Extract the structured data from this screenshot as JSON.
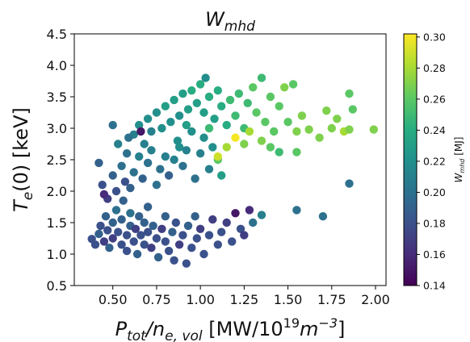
{
  "chart_data": {
    "type": "scatter",
    "title": "W_mhd",
    "title_main": "W",
    "title_sub": "mhd",
    "xlabel": {
      "main": "P",
      "sub": "tot",
      "slash": "/",
      "main2": "n",
      "sub2": "e, vol",
      "units_prefix": " [MW/10",
      "exp": "19",
      "units_mid": "m",
      "exp2": "−3",
      "units_suffix": "]"
    },
    "ylabel": {
      "main": "T",
      "sub": "e",
      "rest": "(0) [keV]"
    },
    "xlim": [
      0.28,
      2.06
    ],
    "ylim": [
      0.5,
      4.5
    ],
    "xticks": [
      "0.50",
      "0.75",
      "1.00",
      "1.25",
      "1.50",
      "1.75",
      "2.00"
    ],
    "xtick_values": [
      0.5,
      0.75,
      1.0,
      1.25,
      1.5,
      1.75,
      2.0
    ],
    "yticks": [
      "0.5",
      "1.0",
      "1.5",
      "2.0",
      "2.5",
      "3.0",
      "3.5",
      "4.0",
      "4.5"
    ],
    "ytick_values": [
      0.5,
      1.0,
      1.5,
      2.0,
      2.5,
      3.0,
      3.5,
      4.0,
      4.5
    ],
    "grid": false,
    "colorbar": {
      "label_main": "W",
      "label_sub": "mhd",
      "label_units": " [MJ]",
      "min": 0.14,
      "max": 0.302,
      "ticks": [
        "0.14",
        "0.16",
        "0.18",
        "0.20",
        "0.22",
        "0.24",
        "0.26",
        "0.28",
        "0.30"
      ],
      "tick_values": [
        0.14,
        0.16,
        0.18,
        0.2,
        0.22,
        0.24,
        0.26,
        0.28,
        0.3
      ],
      "colormap": "viridis"
    },
    "point_count_note_hidden": null,
    "points": [
      {
        "x": 0.38,
        "y": 1.24,
        "w": 0.18
      },
      {
        "x": 0.4,
        "y": 1.15,
        "w": 0.18
      },
      {
        "x": 0.42,
        "y": 1.32,
        "w": 0.19
      },
      {
        "x": 0.43,
        "y": 1.45,
        "w": 0.18
      },
      {
        "x": 0.45,
        "y": 1.2,
        "w": 0.17
      },
      {
        "x": 0.46,
        "y": 1.6,
        "w": 0.19
      },
      {
        "x": 0.47,
        "y": 1.38,
        "w": 0.18
      },
      {
        "x": 0.48,
        "y": 1.1,
        "w": 0.19
      },
      {
        "x": 0.5,
        "y": 1.5,
        "w": 0.19
      },
      {
        "x": 0.5,
        "y": 1.25,
        "w": 0.17
      },
      {
        "x": 0.52,
        "y": 1.7,
        "w": 0.2
      },
      {
        "x": 0.53,
        "y": 1.35,
        "w": 0.18
      },
      {
        "x": 0.55,
        "y": 1.15,
        "w": 0.18
      },
      {
        "x": 0.55,
        "y": 1.55,
        "w": 0.19
      },
      {
        "x": 0.56,
        "y": 1.85,
        "w": 0.19
      },
      {
        "x": 0.58,
        "y": 1.3,
        "w": 0.18
      },
      {
        "x": 0.58,
        "y": 1.05,
        "w": 0.18
      },
      {
        "x": 0.6,
        "y": 1.45,
        "w": 0.19
      },
      {
        "x": 0.6,
        "y": 1.65,
        "w": 0.2
      },
      {
        "x": 0.62,
        "y": 1.2,
        "w": 0.18
      },
      {
        "x": 0.63,
        "y": 1.4,
        "w": 0.17
      },
      {
        "x": 0.64,
        "y": 1.0,
        "w": 0.19
      },
      {
        "x": 0.65,
        "y": 1.6,
        "w": 0.19
      },
      {
        "x": 0.66,
        "y": 1.3,
        "w": 0.18
      },
      {
        "x": 0.68,
        "y": 1.15,
        "w": 0.18
      },
      {
        "x": 0.68,
        "y": 1.5,
        "w": 0.19
      },
      {
        "x": 0.7,
        "y": 1.35,
        "w": 0.18
      },
      {
        "x": 0.7,
        "y": 1.75,
        "w": 0.19
      },
      {
        "x": 0.72,
        "y": 1.1,
        "w": 0.17
      },
      {
        "x": 0.73,
        "y": 1.45,
        "w": 0.19
      },
      {
        "x": 0.75,
        "y": 1.25,
        "w": 0.18
      },
      {
        "x": 0.76,
        "y": 0.95,
        "w": 0.19
      },
      {
        "x": 0.78,
        "y": 1.4,
        "w": 0.17
      },
      {
        "x": 0.8,
        "y": 1.2,
        "w": 0.18
      },
      {
        "x": 0.8,
        "y": 1.6,
        "w": 0.19
      },
      {
        "x": 0.82,
        "y": 1.05,
        "w": 0.18
      },
      {
        "x": 0.84,
        "y": 1.35,
        "w": 0.19
      },
      {
        "x": 0.85,
        "y": 0.9,
        "w": 0.18
      },
      {
        "x": 0.86,
        "y": 1.5,
        "w": 0.18
      },
      {
        "x": 0.88,
        "y": 1.15,
        "w": 0.17
      },
      {
        "x": 0.9,
        "y": 1.3,
        "w": 0.18
      },
      {
        "x": 0.92,
        "y": 0.85,
        "w": 0.18
      },
      {
        "x": 0.93,
        "y": 1.45,
        "w": 0.19
      },
      {
        "x": 0.95,
        "y": 1.1,
        "w": 0.18
      },
      {
        "x": 0.97,
        "y": 1.6,
        "w": 0.19
      },
      {
        "x": 0.98,
        "y": 1.25,
        "w": 0.18
      },
      {
        "x": 1.0,
        "y": 1.4,
        "w": 0.17
      },
      {
        "x": 1.02,
        "y": 1.0,
        "w": 0.18
      },
      {
        "x": 1.05,
        "y": 1.3,
        "w": 0.18
      },
      {
        "x": 1.07,
        "y": 1.55,
        "w": 0.17
      },
      {
        "x": 1.1,
        "y": 1.15,
        "w": 0.18
      },
      {
        "x": 1.12,
        "y": 1.35,
        "w": 0.18
      },
      {
        "x": 1.15,
        "y": 1.5,
        "w": 0.17
      },
      {
        "x": 1.18,
        "y": 1.2,
        "w": 0.18
      },
      {
        "x": 1.2,
        "y": 1.65,
        "w": 0.15
      },
      {
        "x": 1.23,
        "y": 1.4,
        "w": 0.18
      },
      {
        "x": 1.25,
        "y": 1.3,
        "w": 0.17
      },
      {
        "x": 1.28,
        "y": 1.7,
        "w": 0.16
      },
      {
        "x": 1.3,
        "y": 1.5,
        "w": 0.2
      },
      {
        "x": 1.35,
        "y": 1.62,
        "w": 0.21
      },
      {
        "x": 1.55,
        "y": 1.7,
        "w": 0.2
      },
      {
        "x": 1.7,
        "y": 1.6,
        "w": 0.2
      },
      {
        "x": 1.85,
        "y": 2.12,
        "w": 0.2
      },
      {
        "x": 0.47,
        "y": 1.88,
        "w": 0.17
      },
      {
        "x": 0.45,
        "y": 1.95,
        "w": 0.16
      },
      {
        "x": 0.52,
        "y": 2.0,
        "w": 0.18
      },
      {
        "x": 0.5,
        "y": 2.25,
        "w": 0.19
      },
      {
        "x": 0.55,
        "y": 2.4,
        "w": 0.2
      },
      {
        "x": 0.57,
        "y": 2.15,
        "w": 0.18
      },
      {
        "x": 0.6,
        "y": 2.05,
        "w": 0.19
      },
      {
        "x": 0.62,
        "y": 2.3,
        "w": 0.2
      },
      {
        "x": 0.65,
        "y": 2.55,
        "w": 0.21
      },
      {
        "x": 0.67,
        "y": 2.2,
        "w": 0.19
      },
      {
        "x": 0.7,
        "y": 2.45,
        "w": 0.2
      },
      {
        "x": 0.72,
        "y": 2.65,
        "w": 0.21
      },
      {
        "x": 0.75,
        "y": 2.1,
        "w": 0.2
      },
      {
        "x": 0.77,
        "y": 2.35,
        "w": 0.2
      },
      {
        "x": 0.8,
        "y": 2.55,
        "w": 0.21
      },
      {
        "x": 0.82,
        "y": 2.25,
        "w": 0.19
      },
      {
        "x": 0.85,
        "y": 2.5,
        "w": 0.21
      },
      {
        "x": 0.87,
        "y": 2.8,
        "w": 0.22
      },
      {
        "x": 0.9,
        "y": 2.4,
        "w": 0.2
      },
      {
        "x": 0.92,
        "y": 2.65,
        "w": 0.21
      },
      {
        "x": 0.95,
        "y": 2.95,
        "w": 0.22
      },
      {
        "x": 0.97,
        "y": 2.2,
        "w": 0.2
      },
      {
        "x": 1.0,
        "y": 2.6,
        "w": 0.21
      },
      {
        "x": 1.02,
        "y": 2.85,
        "w": 0.22
      },
      {
        "x": 1.05,
        "y": 2.35,
        "w": 0.21
      },
      {
        "x": 1.07,
        "y": 2.7,
        "w": 0.22
      },
      {
        "x": 1.1,
        "y": 2.5,
        "w": 0.26
      },
      {
        "x": 1.12,
        "y": 2.25,
        "w": 0.23
      },
      {
        "x": 0.62,
        "y": 2.9,
        "w": 0.21
      },
      {
        "x": 0.65,
        "y": 3.05,
        "w": 0.22
      },
      {
        "x": 0.68,
        "y": 2.75,
        "w": 0.21
      },
      {
        "x": 0.7,
        "y": 3.15,
        "w": 0.22
      },
      {
        "x": 0.72,
        "y": 2.95,
        "w": 0.21
      },
      {
        "x": 0.75,
        "y": 3.25,
        "w": 0.22
      },
      {
        "x": 0.78,
        "y": 3.0,
        "w": 0.22
      },
      {
        "x": 0.8,
        "y": 3.35,
        "w": 0.23
      },
      {
        "x": 0.83,
        "y": 3.1,
        "w": 0.22
      },
      {
        "x": 0.85,
        "y": 3.45,
        "w": 0.23
      },
      {
        "x": 0.88,
        "y": 3.2,
        "w": 0.22
      },
      {
        "x": 0.9,
        "y": 3.55,
        "w": 0.23
      },
      {
        "x": 0.93,
        "y": 3.3,
        "w": 0.23
      },
      {
        "x": 0.95,
        "y": 3.6,
        "w": 0.24
      },
      {
        "x": 0.98,
        "y": 3.4,
        "w": 0.23
      },
      {
        "x": 1.0,
        "y": 3.7,
        "w": 0.24
      },
      {
        "x": 1.02,
        "y": 3.25,
        "w": 0.23
      },
      {
        "x": 1.03,
        "y": 3.8,
        "w": 0.22
      },
      {
        "x": 1.05,
        "y": 3.5,
        "w": 0.24
      },
      {
        "x": 1.08,
        "y": 3.15,
        "w": 0.23
      },
      {
        "x": 1.1,
        "y": 3.6,
        "w": 0.24
      },
      {
        "x": 1.12,
        "y": 3.35,
        "w": 0.24
      },
      {
        "x": 1.15,
        "y": 3.05,
        "w": 0.24
      },
      {
        "x": 1.17,
        "y": 3.45,
        "w": 0.25
      },
      {
        "x": 1.2,
        "y": 3.2,
        "w": 0.25
      },
      {
        "x": 1.22,
        "y": 3.55,
        "w": 0.25
      },
      {
        "x": 1.25,
        "y": 3.0,
        "w": 0.25
      },
      {
        "x": 1.27,
        "y": 3.4,
        "w": 0.25
      },
      {
        "x": 1.3,
        "y": 3.65,
        "w": 0.26
      },
      {
        "x": 1.32,
        "y": 3.25,
        "w": 0.26
      },
      {
        "x": 1.35,
        "y": 3.8,
        "w": 0.25
      },
      {
        "x": 1.37,
        "y": 3.1,
        "w": 0.26
      },
      {
        "x": 1.4,
        "y": 3.5,
        "w": 0.26
      },
      {
        "x": 1.42,
        "y": 2.95,
        "w": 0.26
      },
      {
        "x": 1.45,
        "y": 3.35,
        "w": 0.26
      },
      {
        "x": 1.48,
        "y": 3.65,
        "w": 0.27
      },
      {
        "x": 1.5,
        "y": 3.1,
        "w": 0.26
      },
      {
        "x": 1.53,
        "y": 3.7,
        "w": 0.26
      },
      {
        "x": 1.55,
        "y": 2.95,
        "w": 0.27
      },
      {
        "x": 1.58,
        "y": 3.2,
        "w": 0.27
      },
      {
        "x": 1.62,
        "y": 2.98,
        "w": 0.27
      },
      {
        "x": 1.68,
        "y": 2.85,
        "w": 0.27
      },
      {
        "x": 1.72,
        "y": 3.28,
        "w": 0.27
      },
      {
        "x": 1.75,
        "y": 3.0,
        "w": 0.27
      },
      {
        "x": 1.78,
        "y": 3.15,
        "w": 0.27
      },
      {
        "x": 1.82,
        "y": 2.95,
        "w": 0.28
      },
      {
        "x": 1.85,
        "y": 2.98,
        "w": 0.27
      },
      {
        "x": 1.87,
        "y": 3.3,
        "w": 0.26
      },
      {
        "x": 1.85,
        "y": 3.55,
        "w": 0.26
      },
      {
        "x": 1.99,
        "y": 2.98,
        "w": 0.27
      },
      {
        "x": 1.4,
        "y": 2.7,
        "w": 0.26
      },
      {
        "x": 1.45,
        "y": 2.62,
        "w": 0.25
      },
      {
        "x": 1.55,
        "y": 2.62,
        "w": 0.26
      },
      {
        "x": 1.35,
        "y": 2.8,
        "w": 0.27
      },
      {
        "x": 1.2,
        "y": 2.85,
        "w": 0.3
      },
      {
        "x": 1.15,
        "y": 2.7,
        "w": 0.28
      },
      {
        "x": 1.25,
        "y": 2.75,
        "w": 0.27
      },
      {
        "x": 1.1,
        "y": 2.55,
        "w": 0.29
      },
      {
        "x": 1.28,
        "y": 2.95,
        "w": 0.28
      },
      {
        "x": 1.05,
        "y": 3.0,
        "w": 0.25
      },
      {
        "x": 0.92,
        "y": 3.05,
        "w": 0.23
      },
      {
        "x": 0.88,
        "y": 2.7,
        "w": 0.22
      },
      {
        "x": 0.58,
        "y": 2.6,
        "w": 0.2
      },
      {
        "x": 0.53,
        "y": 2.75,
        "w": 0.21
      },
      {
        "x": 0.5,
        "y": 3.05,
        "w": 0.2
      },
      {
        "x": 0.42,
        "y": 2.45,
        "w": 0.19
      },
      {
        "x": 0.44,
        "y": 2.1,
        "w": 0.18
      },
      {
        "x": 0.66,
        "y": 2.95,
        "w": 0.15
      },
      {
        "x": 0.59,
        "y": 2.85,
        "w": 0.2
      }
    ]
  }
}
